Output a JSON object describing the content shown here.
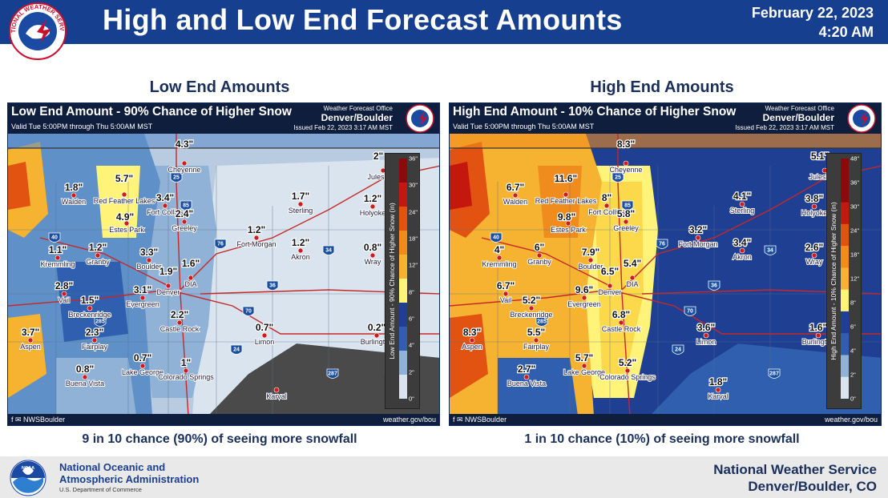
{
  "header": {
    "title": "High and Low End Forecast Amounts",
    "date": "February 22, 2023",
    "time": "4:20 AM",
    "logo_text": "NATIONAL WEATHER SERVICE",
    "colors": {
      "band": "#173f8f",
      "text": "#ffffff"
    }
  },
  "panels": [
    {
      "id": "low",
      "heading": "Low End Amounts",
      "map_title": "Low End Amount - 90% Chance of Higher Snow",
      "valid": "Valid Tue 5:00PM through Thu 5:00AM MST",
      "wfo_line1": "Weather Forecast Office",
      "wfo_line2": "Denver/Boulder",
      "issued": "Issued Feb 22, 2023 3:17 AM MST",
      "legend_title": "Low End Amount - 90% Chance of Higher Snow (in)",
      "legend_ticks": [
        "36\"",
        "30\"",
        "24\"",
        "18\"",
        "12\"",
        "8\"",
        "6\"",
        "4\"",
        "2\"",
        "0\""
      ],
      "footer_social": "NWSBoulder",
      "footer_site": "weather.gov/bou",
      "caption": "9 in 10 chance (90%) of seeing more snowfall",
      "points": [
        {
          "city": "Cheyenne",
          "amount": "4.3\""
        },
        {
          "city": "Julesburg",
          "amount": "2\""
        },
        {
          "city": "Walden",
          "amount": "1.8\""
        },
        {
          "city": "Red Feather Lakes",
          "amount": "5.7\""
        },
        {
          "city": "Fort Collins",
          "amount": "3.4\""
        },
        {
          "city": "Greeley",
          "amount": "2.4\""
        },
        {
          "city": "Estes Park",
          "amount": "4.9\""
        },
        {
          "city": "Sterling",
          "amount": "1.7\""
        },
        {
          "city": "Holyoke",
          "amount": "1.2\""
        },
        {
          "city": "Kremmling",
          "amount": "1.1\""
        },
        {
          "city": "Granby",
          "amount": "1.2\""
        },
        {
          "city": "Boulder",
          "amount": "3.3\""
        },
        {
          "city": "Fort Morgan",
          "amount": "1.2\""
        },
        {
          "city": "Akron",
          "amount": "1.2\""
        },
        {
          "city": "Wray",
          "amount": "0.8\""
        },
        {
          "city": "DIA",
          "amount": "1.6\""
        },
        {
          "city": "Denver",
          "amount": "1.9\""
        },
        {
          "city": "Vail",
          "amount": "2.8\""
        },
        {
          "city": "Breckenridge",
          "amount": "1.5\""
        },
        {
          "city": "Evergreen",
          "amount": "3.1\""
        },
        {
          "city": "Castle Rock",
          "amount": "2.2\""
        },
        {
          "city": "Aspen",
          "amount": "3.7\""
        },
        {
          "city": "Fairplay",
          "amount": "2.3\""
        },
        {
          "city": "Limon",
          "amount": "0.7\""
        },
        {
          "city": "Burlington",
          "amount": "0.2\""
        },
        {
          "city": "Lake George",
          "amount": "0.7\""
        },
        {
          "city": "Buena Vista",
          "amount": "0.8\""
        },
        {
          "city": "Colorado Springs",
          "amount": "1\""
        },
        {
          "city": "Karval",
          "amount": ""
        }
      ]
    },
    {
      "id": "high",
      "heading": "High End Amounts",
      "map_title": "High End Amount - 10% Chance of Higher Snow",
      "valid": "Valid Tue 5:00PM through Thu 5:00AM MST",
      "wfo_line1": "Weather Forecast Office",
      "wfo_line2": "Denver/Boulder",
      "issued": "Issued Feb 22, 2023 3:17 AM MST",
      "legend_title": "High End Amount - 10% Chance of Higher Snow (in)",
      "legend_ticks": [
        "48\"",
        "36\"",
        "30\"",
        "24\"",
        "18\"",
        "12\"",
        "8\"",
        "6\"",
        "4\"",
        "2\"",
        "0\""
      ],
      "footer_social": "NWSBoulder",
      "footer_site": "weather.gov/bou",
      "caption": "1 in 10 chance (10%) of seeing more snowfall",
      "points": [
        {
          "city": "Cheyenne",
          "amount": "8.3\""
        },
        {
          "city": "Julesburg",
          "amount": "5.1\""
        },
        {
          "city": "Walden",
          "amount": "6.7\""
        },
        {
          "city": "Red Feather Lakes",
          "amount": "11.6\""
        },
        {
          "city": "Fort Collins",
          "amount": "8\""
        },
        {
          "city": "Greeley",
          "amount": "5.8\""
        },
        {
          "city": "Estes Park",
          "amount": "9.8\""
        },
        {
          "city": "Sterling",
          "amount": "4.1\""
        },
        {
          "city": "Holyoke",
          "amount": "3.8\""
        },
        {
          "city": "Kremmling",
          "amount": "4\""
        },
        {
          "city": "Granby",
          "amount": "6\""
        },
        {
          "city": "Boulder",
          "amount": "7.9\""
        },
        {
          "city": "Fort Morgan",
          "amount": "3.2\""
        },
        {
          "city": "Akron",
          "amount": "3.4\""
        },
        {
          "city": "Wray",
          "amount": "2.6\""
        },
        {
          "city": "DIA",
          "amount": "5.4\""
        },
        {
          "city": "Denver",
          "amount": "6.5\""
        },
        {
          "city": "Vail",
          "amount": "6.7\""
        },
        {
          "city": "Breckenridge",
          "amount": "5.2\""
        },
        {
          "city": "Evergreen",
          "amount": "9.6\""
        },
        {
          "city": "Castle Rock",
          "amount": "6.8\""
        },
        {
          "city": "Aspen",
          "amount": "8.3\""
        },
        {
          "city": "Fairplay",
          "amount": "5.5\""
        },
        {
          "city": "Limon",
          "amount": "3.6\""
        },
        {
          "city": "Burlington",
          "amount": "1.6\""
        },
        {
          "city": "Lake George",
          "amount": "5.7\""
        },
        {
          "city": "Buena Vista",
          "amount": "2.7\""
        },
        {
          "city": "Colorado Springs",
          "amount": "5.2\""
        },
        {
          "city": "Karval",
          "amount": "1.8\""
        }
      ]
    }
  ],
  "highways": [
    "25",
    "85",
    "76",
    "34",
    "40",
    "36",
    "70",
    "285",
    "24",
    "287"
  ],
  "footer": {
    "noaa_line1": "National Oceanic and",
    "noaa_line2": "Atmospheric Administration",
    "noaa_dept": "U.S. Department of Commerce",
    "noaa_logo_text": "NOAA",
    "nws_line1": "National Weather Service",
    "nws_line2": "Denver/Boulder, CO"
  }
}
